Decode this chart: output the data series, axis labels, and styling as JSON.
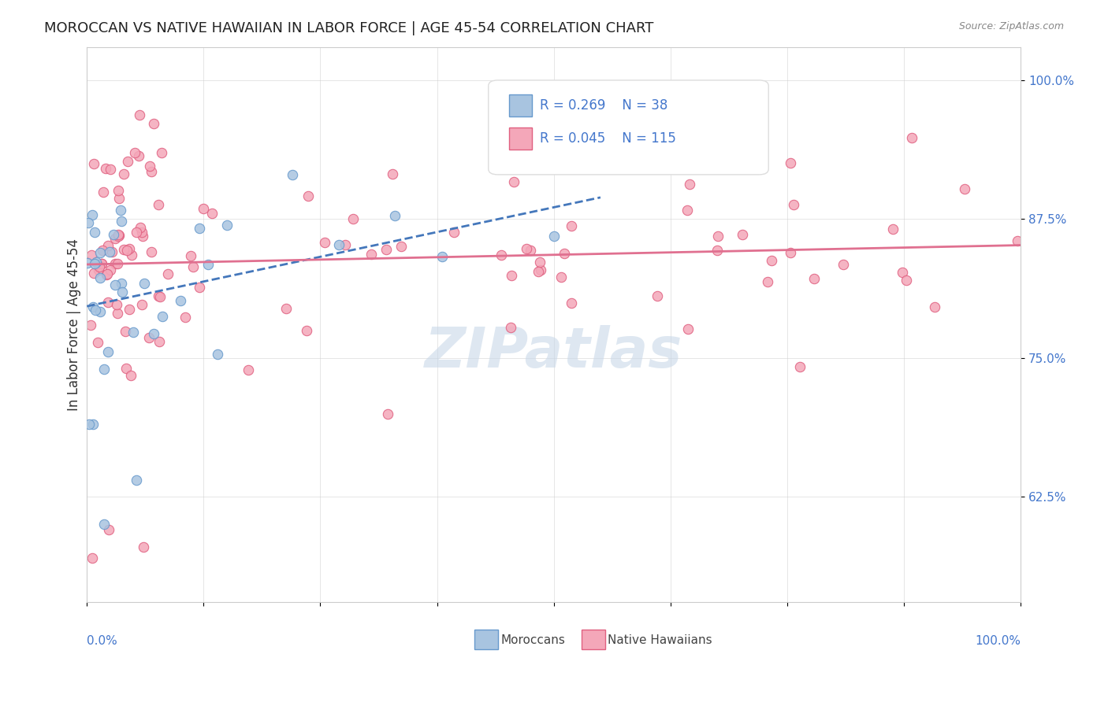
{
  "title": "MOROCCAN VS NATIVE HAWAIIAN IN LABOR FORCE | AGE 45-54 CORRELATION CHART",
  "source": "Source: ZipAtlas.com",
  "ylabel": "In Labor Force | Age 45-54",
  "xlim": [
    0.0,
    1.0
  ],
  "ylim": [
    0.53,
    1.03
  ],
  "moroccan_R": 0.269,
  "moroccan_N": 38,
  "hawaiian_R": 0.045,
  "hawaiian_N": 115,
  "moroccan_color": "#a8c4e0",
  "hawaiian_color": "#f4a7b9",
  "moroccan_edge": "#6699cc",
  "hawaiian_edge": "#e06080",
  "trend_moroccan_color": "#4477bb",
  "trend_hawaiian_color": "#e07090",
  "watermark_color": "#c8d8e8",
  "background_color": "#ffffff",
  "tick_color": "#4477cc",
  "label_color": "#444444"
}
